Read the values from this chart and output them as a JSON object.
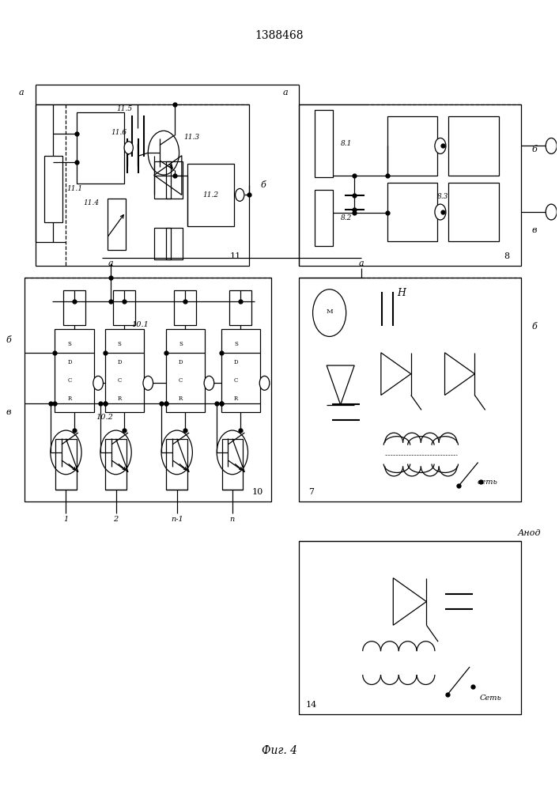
{
  "title": "1388468",
  "caption": "Фиг. 4",
  "bg_color": "#ffffff",
  "lc": "#000000",
  "label_a": "а",
  "label_b": "б",
  "label_v": "в",
  "label_8": "8",
  "label_7": "7",
  "label_10": "10",
  "label_11": "11",
  "label_14": "14",
  "label_101": "10.1",
  "label_102": "10.2",
  "label_111": "11.1",
  "label_112": "11.2",
  "label_113": "11.3",
  "label_114": "11.4",
  "label_115": "11.5",
  "label_116": "11.6",
  "label_81": "8.1",
  "label_82": "8.2",
  "label_83": "8.3",
  "label_anode": "Анод",
  "label_set_lower": "сеть",
  "label_set_upper": "Сеть",
  "bottom_labels": [
    "1",
    "2",
    "п-1",
    "п"
  ],
  "b11": [
    0.06,
    0.665,
    0.385,
    0.205
  ],
  "b8": [
    0.535,
    0.665,
    0.4,
    0.205
  ],
  "b10": [
    0.04,
    0.365,
    0.445,
    0.285
  ],
  "b7": [
    0.535,
    0.365,
    0.4,
    0.285
  ],
  "b14": [
    0.535,
    0.095,
    0.4,
    0.22
  ],
  "sdcr_labels": [
    "S",
    "D",
    "C",
    "R"
  ],
  "lw": 0.9,
  "lw2": 1.5,
  "fs_main": 10,
  "fs_label": 8,
  "fs_small": 6.5,
  "fs_tiny": 5
}
